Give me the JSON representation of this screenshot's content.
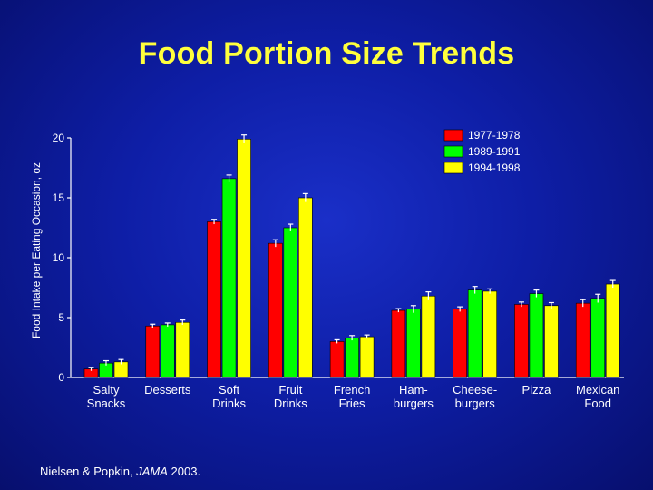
{
  "slide": {
    "title": "Food Portion Size Trends",
    "citation": {
      "authors": "Nielsen & Popkin, ",
      "journal": "JAMA",
      "year": " 2003."
    }
  },
  "chart_data": {
    "type": "bar",
    "title": "Food Portion Size Trends",
    "xlabel": "",
    "ylabel": "Food Intake per Eating Occasion, oz",
    "ylim": [
      0,
      20
    ],
    "yticks": [
      0,
      5,
      10,
      15,
      20
    ],
    "grid": false,
    "legend_position": "top-right",
    "categories": [
      [
        "Salty",
        "Snacks"
      ],
      [
        "Desserts"
      ],
      [
        "Soft",
        "Drinks"
      ],
      [
        "Fruit",
        "Drinks"
      ],
      [
        "French",
        "Fries"
      ],
      [
        "Ham-",
        "burgers"
      ],
      [
        "Cheese-",
        "burgers"
      ],
      [
        "Pizza"
      ],
      [
        "Mexican",
        "Food"
      ]
    ],
    "series": [
      {
        "name": "1977-1978",
        "color": "#ff0000",
        "values": [
          0.7,
          4.3,
          13.0,
          11.2,
          3.0,
          5.6,
          5.7,
          6.1,
          6.2
        ],
        "errors": [
          0.15,
          0.15,
          0.2,
          0.3,
          0.15,
          0.15,
          0.2,
          0.2,
          0.3
        ]
      },
      {
        "name": "1989-1991",
        "color": "#00ff00",
        "values": [
          1.2,
          4.4,
          16.6,
          12.5,
          3.3,
          5.7,
          7.3,
          7.0,
          6.6
        ],
        "errors": [
          0.2,
          0.15,
          0.3,
          0.3,
          0.2,
          0.3,
          0.3,
          0.3,
          0.35
        ]
      },
      {
        "name": "1994-1998",
        "color": "#ffff00",
        "values": [
          1.3,
          4.6,
          19.9,
          15.0,
          3.4,
          6.8,
          7.2,
          6.0,
          7.8
        ],
        "errors": [
          0.2,
          0.2,
          0.35,
          0.35,
          0.15,
          0.35,
          0.2,
          0.25,
          0.3
        ]
      }
    ]
  }
}
